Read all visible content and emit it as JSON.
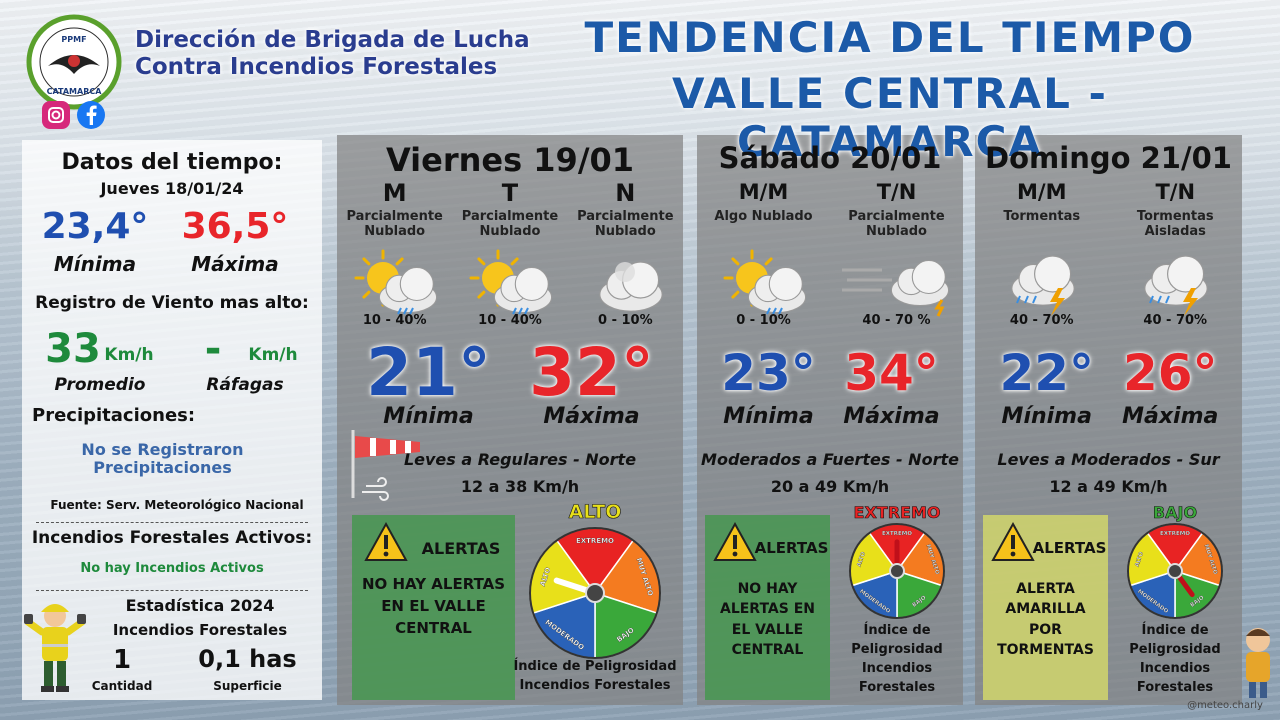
{
  "header": {
    "org_name": [
      "Dirección de Brigada de Lucha",
      "Contra Incendios Forestales"
    ],
    "logo_text": [
      "PPMF",
      "CATAMARCA"
    ],
    "title": [
      "TENDENCIA DEL TIEMPO",
      "VALLE CENTRAL - CATAMARCA"
    ]
  },
  "current": {
    "title": "Datos del tiempo:",
    "date": "Jueves 18/01/24",
    "min": "23,4°",
    "min_label": "Mínima",
    "max": "36,5°",
    "max_label": "Máxima",
    "wind_title": "Registro de Viento mas alto:",
    "wind_avg": "33",
    "wind_avg_unit": "Km/h",
    "wind_avg_label": "Promedio",
    "wind_gust": "-",
    "wind_gust_unit": "Km/h",
    "wind_gust_label": "Ráfagas",
    "precip_title": "Precipitaciones:",
    "precip_text": "No se Registraron Precipitaciones",
    "source": "Fuente: Serv. Meteorológico Nacional",
    "fires_title": "Incendios Forestales Activos:",
    "fires_text": "No hay Incendios Activos",
    "stats_title": "Estadística 2024",
    "stats_subtitle": "Incendios Forestales",
    "stats_count": "1",
    "stats_count_label": "Cantidad",
    "stats_area": "0,1 has",
    "stats_area_label": "Superficie"
  },
  "gauge_labels": [
    "EXTREMO",
    "MUY ALTO",
    "BAJO",
    "MODERADO",
    "ALTO"
  ],
  "days": [
    {
      "name": "Viernes 19/01",
      "periods": [
        {
          "label": "M",
          "condition": "Parcialmente Nublado",
          "probability": "10 - 40%"
        },
        {
          "label": "T",
          "condition": "Parcialmente Nublado",
          "probability": "10 - 40%"
        },
        {
          "label": "N",
          "condition": "Parcialmente Nublado",
          "probability": "0 - 10%"
        }
      ],
      "min": "21°",
      "min_label": "Mínima",
      "max": "32°",
      "max_label": "Máxima",
      "wind": "Leves a Regulares - Norte",
      "wind_speed": "12 a 38 Km/h",
      "alert_title": "ALERTAS",
      "alert_text": "NO HAY ALERTAS EN EL VALLE CENTRAL",
      "danger_level": "ALTO",
      "danger_caption": "Índice de Peligrosidad Incendios Forestales"
    },
    {
      "name": "Sábado 20/01",
      "periods": [
        {
          "label": "M/M",
          "condition": "Algo Nublado",
          "probability": "0 - 10%"
        },
        {
          "label": "T/N",
          "condition": "Parcialmente Nublado",
          "probability": "40 - 70 %"
        }
      ],
      "min": "23°",
      "min_label": "Mínima",
      "max": "34°",
      "max_label": "Máxima",
      "wind": "Moderados a Fuertes - Norte",
      "wind_speed": "20 a 49 Km/h",
      "alert_title": "ALERTAS",
      "alert_text": "NO HAY ALERTAS EN EL VALLE CENTRAL",
      "danger_level": "EXTREMO",
      "danger_caption": "Índice de Peligrosidad Incendios Forestales"
    },
    {
      "name": "Domingo 21/01",
      "periods": [
        {
          "label": "M/M",
          "condition": "Tormentas",
          "probability": "40 - 70%"
        },
        {
          "label": "T/N",
          "condition": "Tormentas Aisladas",
          "probability": "40 - 70%"
        }
      ],
      "min": "22°",
      "min_label": "Mínima",
      "max": "26°",
      "max_label": "Máxima",
      "wind": "Leves a Moderados - Sur",
      "wind_speed": "12 a 49 Km/h",
      "alert_title": "ALERTAS",
      "alert_text": "ALERTA AMARILLA POR TORMENTAS",
      "danger_level": "BAJO",
      "danger_caption": "Índice de Peligrosidad Incendios Forestales"
    }
  ],
  "credit": "@meteo.charly"
}
